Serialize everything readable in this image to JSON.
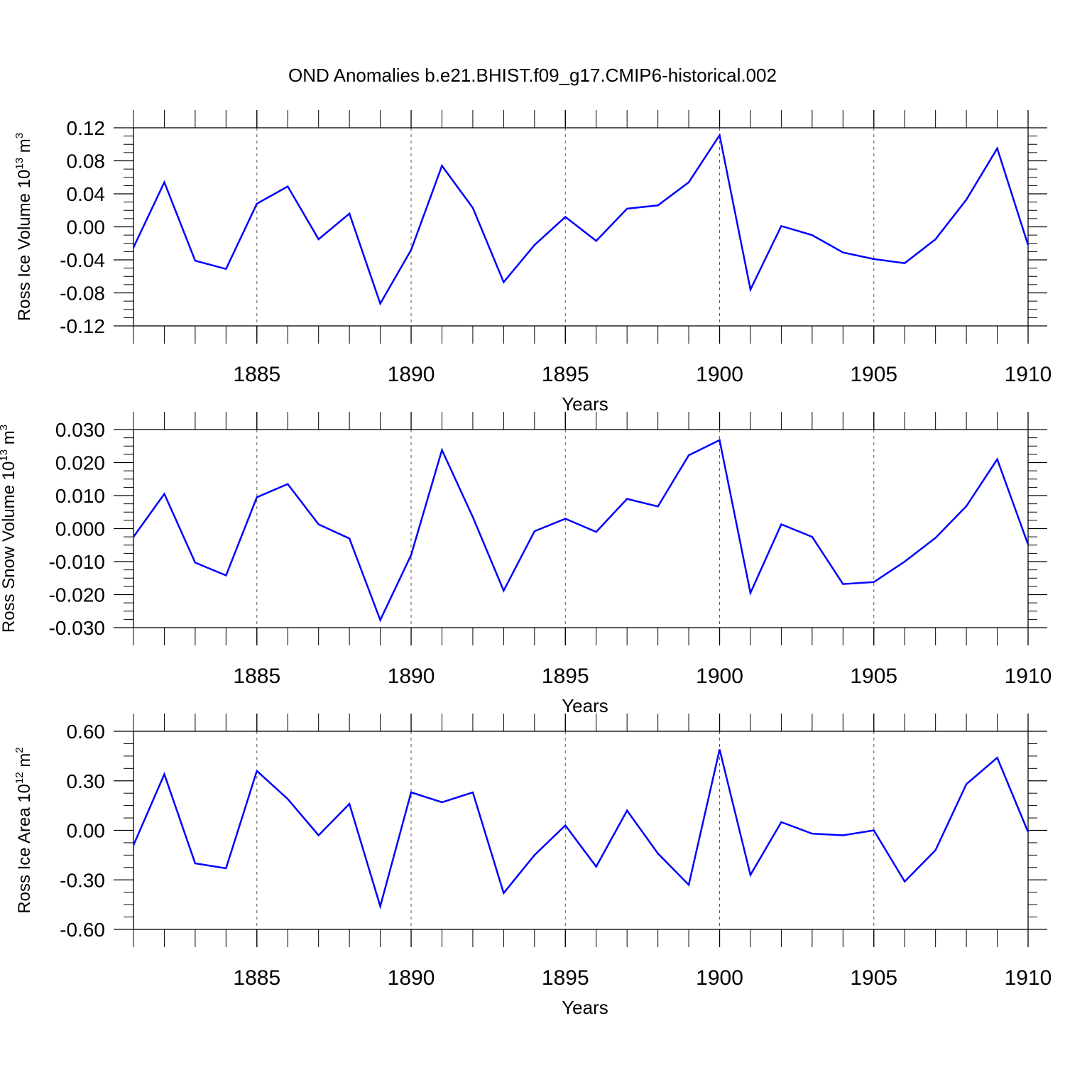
{
  "title": "OND Anomalies b.e21.BHIST.f09_g17.CMIP6-historical.002",
  "colors": {
    "line": "#0000ff",
    "axis": "#000000",
    "grid": "#555555"
  },
  "chart_data": [
    {
      "type": "line",
      "ylabel": {
        "text": "Ross Ice Volume 10",
        "exp": "13",
        "unit": " m",
        "unit_exp": "3"
      },
      "xlabel": "Years",
      "xlim": [
        1881,
        1910
      ],
      "xticks": [
        "1885",
        "1890",
        "1895",
        "1900",
        "1905",
        "1910"
      ],
      "ylim": [
        -0.12,
        0.12
      ],
      "yticks": [
        "-0.12",
        "-0.08",
        "-0.04",
        "0.00",
        "0.04",
        "0.08",
        "0.12"
      ],
      "grid": "dashed vertical at major x ticks",
      "x": [
        1881,
        1882,
        1883,
        1884,
        1885,
        1886,
        1887,
        1888,
        1889,
        1890,
        1891,
        1892,
        1893,
        1894,
        1895,
        1896,
        1897,
        1898,
        1899,
        1900,
        1901,
        1902,
        1903,
        1904,
        1905,
        1906,
        1907,
        1908,
        1909,
        1910
      ],
      "series": [
        {
          "values": [
            -0.025,
            0.054,
            -0.041,
            -0.051,
            0.028,
            0.049,
            -0.015,
            0.016,
            -0.093,
            -0.028,
            0.074,
            0.023,
            -0.067,
            -0.022,
            0.012,
            -0.017,
            0.022,
            0.026,
            0.054,
            0.111,
            -0.076,
            0.001,
            -0.01,
            -0.031,
            -0.039,
            -0.044,
            -0.015,
            0.033,
            0.095,
            -0.022
          ]
        }
      ]
    },
    {
      "type": "line",
      "ylabel": {
        "text": "Ross Snow Volume 10",
        "exp": "13",
        "unit": " m",
        "unit_exp": "3"
      },
      "xlabel": "Years",
      "xlim": [
        1881,
        1910
      ],
      "xticks": [
        "1885",
        "1890",
        "1895",
        "1900",
        "1905",
        "1910"
      ],
      "ylim": [
        -0.03,
        0.03
      ],
      "yticks": [
        "-0.030",
        "-0.020",
        "-0.010",
        "0.000",
        "0.010",
        "0.020",
        "0.030"
      ],
      "grid": "dashed vertical at major x ticks",
      "x": [
        1881,
        1882,
        1883,
        1884,
        1885,
        1886,
        1887,
        1888,
        1889,
        1890,
        1891,
        1892,
        1893,
        1894,
        1895,
        1896,
        1897,
        1898,
        1899,
        1900,
        1901,
        1902,
        1903,
        1904,
        1905,
        1906,
        1907,
        1908,
        1909,
        1910
      ],
      "series": [
        {
          "values": [
            -0.0025,
            0.0105,
            -0.0103,
            -0.0142,
            0.0095,
            0.0135,
            0.0013,
            -0.003,
            -0.0277,
            -0.008,
            0.0238,
            0.0035,
            -0.0188,
            -0.0008,
            0.003,
            -0.001,
            0.009,
            0.0067,
            0.0222,
            0.0268,
            -0.0195,
            0.0013,
            -0.0025,
            -0.0168,
            -0.0162,
            -0.01,
            -0.0028,
            0.0068,
            0.021,
            -0.0048
          ]
        }
      ]
    },
    {
      "type": "line",
      "ylabel": {
        "text": "Ross Ice Area 10",
        "exp": "12",
        "unit": " m",
        "unit_exp": "2"
      },
      "xlabel": "Years",
      "xlim": [
        1881,
        1910
      ],
      "xticks": [
        "1885",
        "1890",
        "1895",
        "1900",
        "1905",
        "1910"
      ],
      "ylim": [
        -0.6,
        0.6
      ],
      "yticks": [
        "-0.60",
        "-0.30",
        "0.00",
        "0.30",
        "0.60"
      ],
      "grid": "dashed vertical at major x ticks",
      "x": [
        1881,
        1882,
        1883,
        1884,
        1885,
        1886,
        1887,
        1888,
        1889,
        1890,
        1891,
        1892,
        1893,
        1894,
        1895,
        1896,
        1897,
        1898,
        1899,
        1900,
        1901,
        1902,
        1903,
        1904,
        1905,
        1906,
        1907,
        1908,
        1909,
        1910
      ],
      "series": [
        {
          "values": [
            -0.09,
            0.34,
            -0.2,
            -0.23,
            0.36,
            0.19,
            -0.03,
            0.16,
            -0.46,
            0.23,
            0.17,
            0.23,
            -0.38,
            -0.15,
            0.03,
            -0.22,
            0.12,
            -0.14,
            -0.33,
            0.49,
            -0.27,
            0.05,
            -0.02,
            -0.03,
            0.0,
            -0.31,
            -0.12,
            0.28,
            0.44,
            -0.01
          ]
        }
      ]
    }
  ]
}
